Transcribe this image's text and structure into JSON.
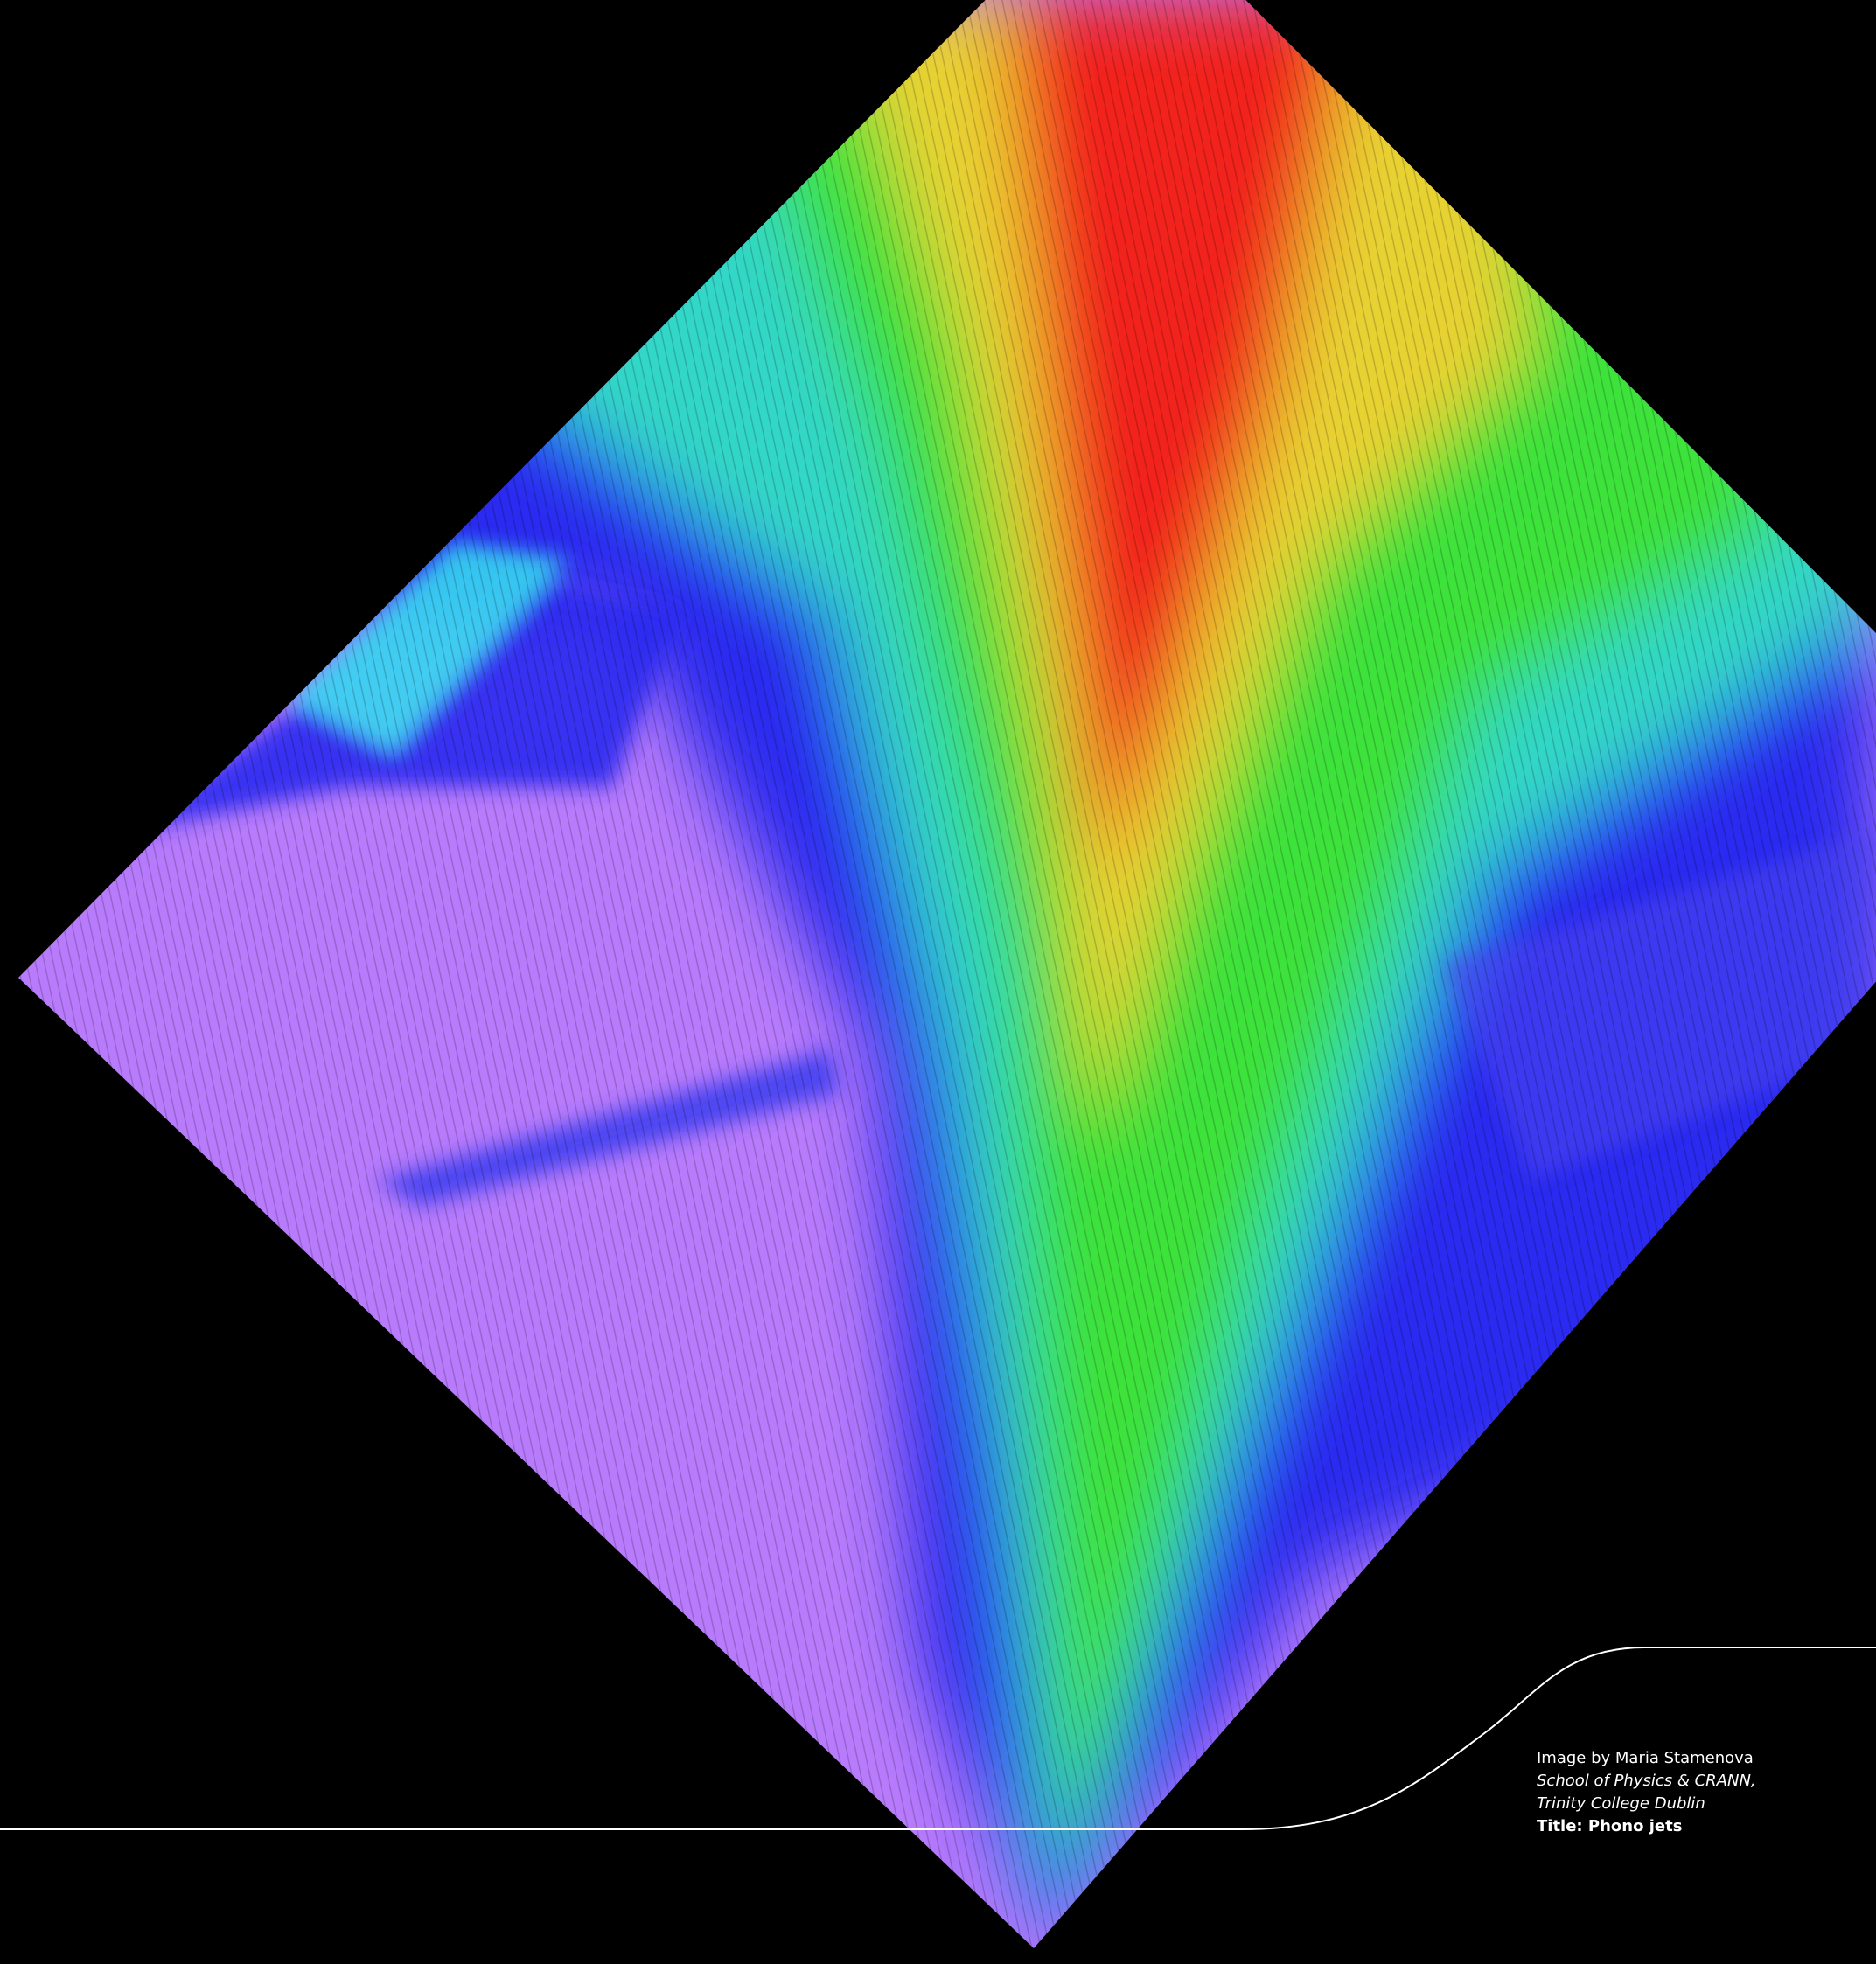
{
  "caption": {
    "credit": "Image by Maria Stamenova",
    "affiliation": [
      "School of Physics & CRANN,",
      "Trinity College Dublin"
    ],
    "title": "Title: Phono jets"
  }
}
